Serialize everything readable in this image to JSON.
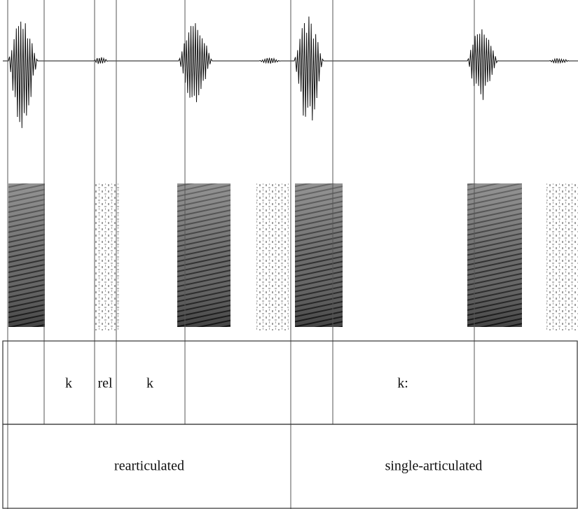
{
  "tiers": [
    {
      "labels": [
        "k",
        "rel",
        "k",
        "k:"
      ]
    },
    {
      "labels": [
        "rearticulated",
        "single-articulated"
      ]
    }
  ]
}
